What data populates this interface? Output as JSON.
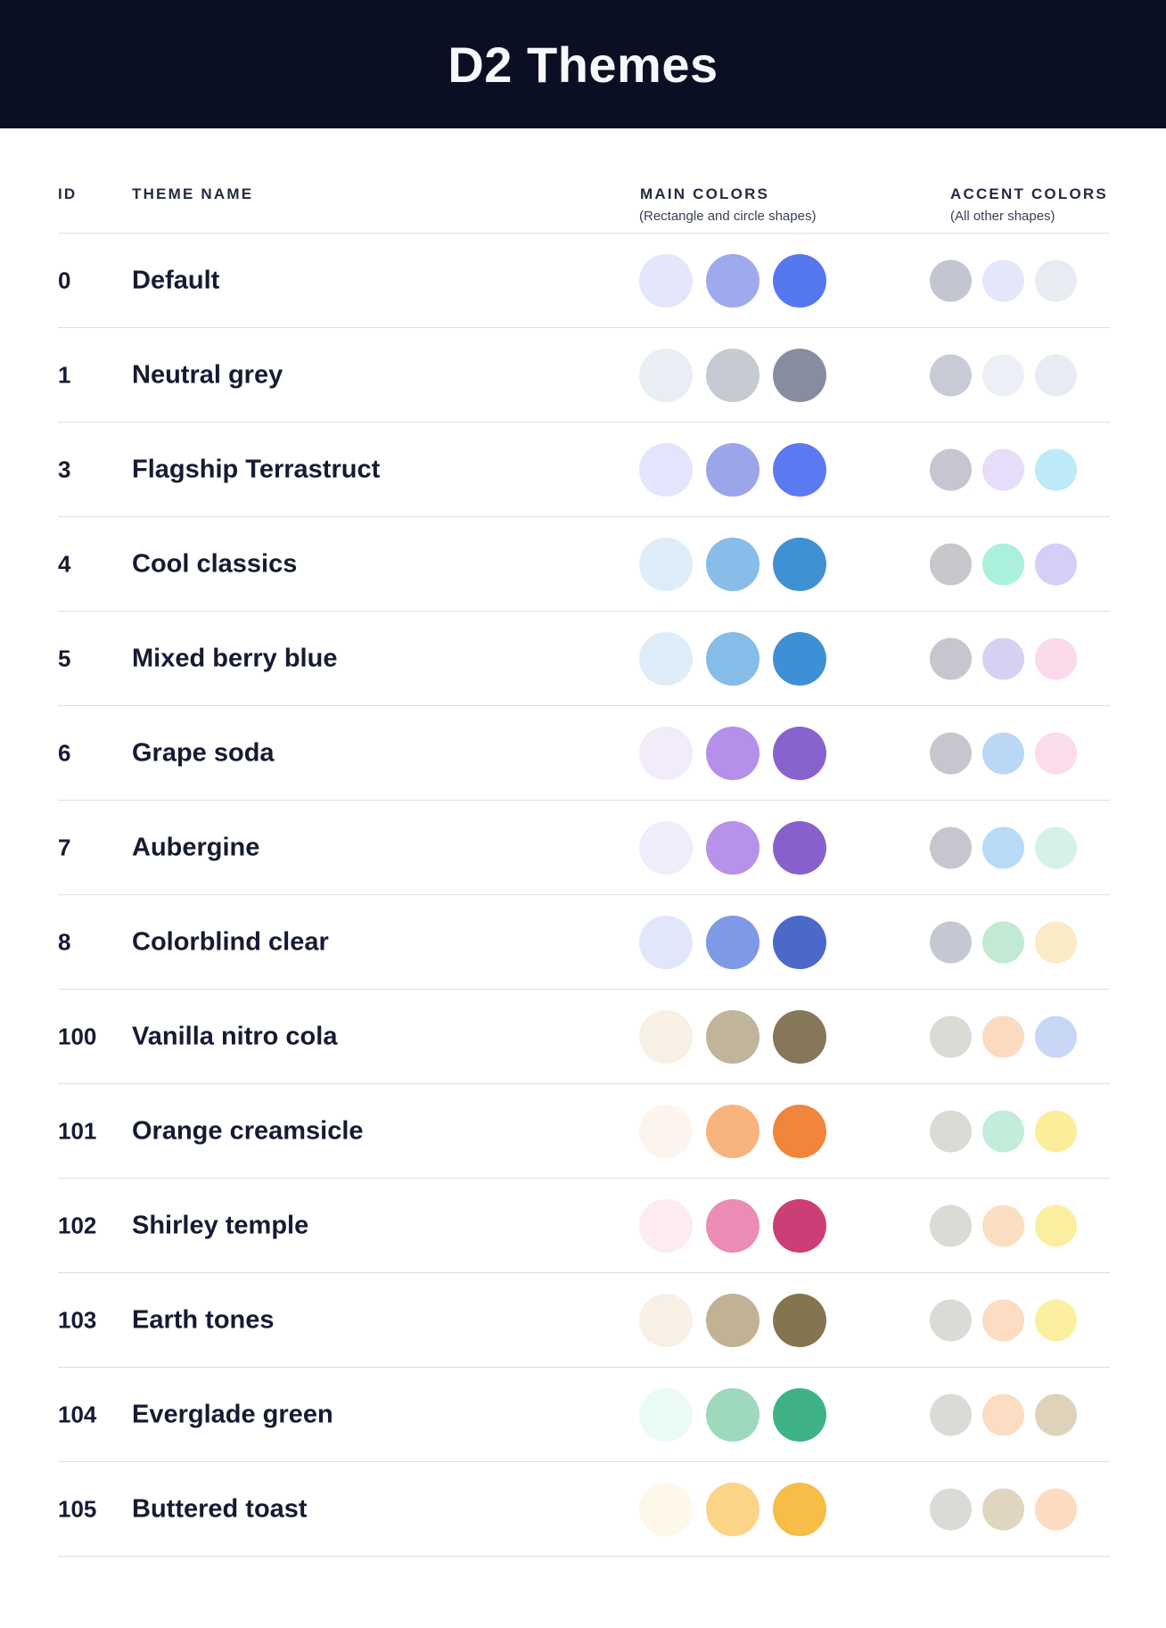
{
  "header": {
    "title": "D2 Themes"
  },
  "columns": {
    "id_label": "ID",
    "name_label": "THEME NAME",
    "main_label": "MAIN COLORS",
    "main_sublabel": "(Rectangle and circle shapes)",
    "accent_label": "ACCENT COLORS",
    "accent_sublabel": "(All other shapes)"
  },
  "colors": {
    "band_bg": "#0A0F23",
    "title_text": "#F7F8FC",
    "heading_text": "#232A42",
    "subtext": "#3A4154",
    "row_text": "#161B33",
    "divider": "#DCDFE9"
  },
  "themes": [
    {
      "id": "0",
      "name": "Default",
      "main": [
        "#E4E7FB",
        "#9EA9EE",
        "#5578EF"
      ],
      "accent": [
        "#C3C5D1",
        "#E4E7FA",
        "#E9EBF3"
      ]
    },
    {
      "id": "1",
      "name": "Neutral grey",
      "main": [
        "#EAEDF3",
        "#C6CAD3",
        "#878CA0"
      ],
      "accent": [
        "#C8CBD4",
        "#EDEFF6",
        "#E9EBF3"
      ]
    },
    {
      "id": "3",
      "name": "Flagship Terrastruct",
      "main": [
        "#E2E5FB",
        "#9DA5EA",
        "#5B79F0"
      ],
      "accent": [
        "#C5C6CF",
        "#E6DEF8",
        "#BCEAF7"
      ]
    },
    {
      "id": "4",
      "name": "Cool classics",
      "main": [
        "#DFEDF8",
        "#87BDE8",
        "#4090D4"
      ],
      "accent": [
        "#C7C7CC",
        "#ABF0DC",
        "#D6CEF6"
      ]
    },
    {
      "id": "5",
      "name": "Mixed berry blue",
      "main": [
        "#DFEDF8",
        "#85BCE8",
        "#3E90D5"
      ],
      "accent": [
        "#C6C7CE",
        "#D8D0F3",
        "#FBDAEC"
      ]
    },
    {
      "id": "6",
      "name": "Grape soda",
      "main": [
        "#F1EBFA",
        "#B490EA",
        "#8763CC"
      ],
      "accent": [
        "#C6C7CE",
        "#B8D8F6",
        "#FBDCEC"
      ]
    },
    {
      "id": "7",
      "name": "Aubergine",
      "main": [
        "#F1ECFA",
        "#B792EA",
        "#8661CB"
      ],
      "accent": [
        "#C6C7CE",
        "#B7DAF7",
        "#D6F1E8"
      ]
    },
    {
      "id": "8",
      "name": "Colorblind clear",
      "main": [
        "#E2E6FA",
        "#7E99E6",
        "#4A69C9"
      ],
      "accent": [
        "#C5C7D2",
        "#C2EAD2",
        "#FAEAC6"
      ]
    },
    {
      "id": "100",
      "name": "Vanilla nitro cola",
      "main": [
        "#F8F0E5",
        "#C0B49B",
        "#857757"
      ],
      "accent": [
        "#DCDAD5",
        "#FCDBC0",
        "#C9D7F7"
      ]
    },
    {
      "id": "101",
      "name": "Orange creamsicle",
      "main": [
        "#FEF4EE",
        "#F9B47E",
        "#F0853B"
      ],
      "accent": [
        "#DCDAD5",
        "#C3ECDA",
        "#FAEE9A"
      ]
    },
    {
      "id": "102",
      "name": "Shirley temple",
      "main": [
        "#FDEAF2",
        "#EA8CB4",
        "#CC3E76"
      ],
      "accent": [
        "#DCDAD5",
        "#FCDEC3",
        "#FAEF9F"
      ]
    },
    {
      "id": "103",
      "name": "Earth tones",
      "main": [
        "#F8F0E5",
        "#C1B295",
        "#857450"
      ],
      "accent": [
        "#DCDAD5",
        "#FCDCC2",
        "#FAF0A0"
      ]
    },
    {
      "id": "104",
      "name": "Everglade green",
      "main": [
        "#EAFBF4",
        "#9DD9BA",
        "#3EB286"
      ],
      "accent": [
        "#DCDAD6",
        "#FCDCC2",
        "#DED2BB"
      ]
    },
    {
      "id": "105",
      "name": "Buttered toast",
      "main": [
        "#FEF8E9",
        "#FCD488",
        "#F6BD47"
      ],
      "accent": [
        "#DCDAD6",
        "#E0D5BF",
        "#FCDBC1"
      ]
    }
  ]
}
